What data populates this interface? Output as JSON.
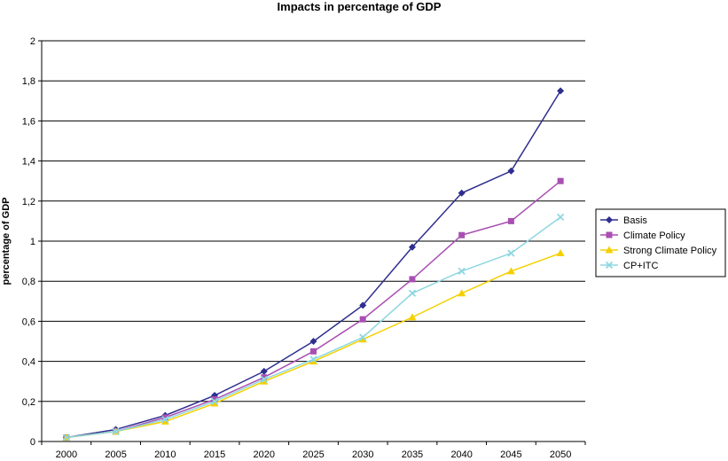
{
  "chart_data": {
    "type": "line",
    "title": "Impacts in percentage of GDP",
    "xlabel": "",
    "ylabel": "percentage of GDP",
    "x": [
      "2000",
      "2005",
      "2010",
      "2015",
      "2020",
      "2025",
      "2030",
      "2035",
      "2040",
      "2045",
      "2050"
    ],
    "y_ticks": [
      "0",
      "0,2",
      "0,4",
      "0,6",
      "0,8",
      "1",
      "1,2",
      "1,4",
      "1,6",
      "1,8",
      "2"
    ],
    "ylim": [
      0,
      2
    ],
    "grid": "horizontal",
    "legend_position": "right",
    "series": [
      {
        "name": "Basis",
        "color": "#2e2e8f",
        "marker": "diamond",
        "values": [
          0.02,
          0.06,
          0.13,
          0.23,
          0.35,
          0.5,
          0.68,
          0.97,
          1.24,
          1.35,
          1.75
        ]
      },
      {
        "name": "Climate Policy",
        "color": "#a94fb3",
        "marker": "square",
        "values": [
          0.02,
          0.05,
          0.12,
          0.21,
          0.32,
          0.45,
          0.61,
          0.81,
          1.03,
          1.1,
          1.3
        ]
      },
      {
        "name": "Strong Climate Policy",
        "color": "#f5d000",
        "marker": "triangle",
        "values": [
          0.02,
          0.05,
          0.1,
          0.19,
          0.3,
          0.4,
          0.51,
          0.62,
          0.74,
          0.85,
          0.94
        ]
      },
      {
        "name": "CP+ITC",
        "color": "#8ed7e0",
        "marker": "x",
        "values": [
          0.02,
          0.05,
          0.11,
          0.2,
          0.31,
          0.41,
          0.52,
          0.74,
          0.85,
          0.94,
          1.12
        ]
      }
    ]
  }
}
